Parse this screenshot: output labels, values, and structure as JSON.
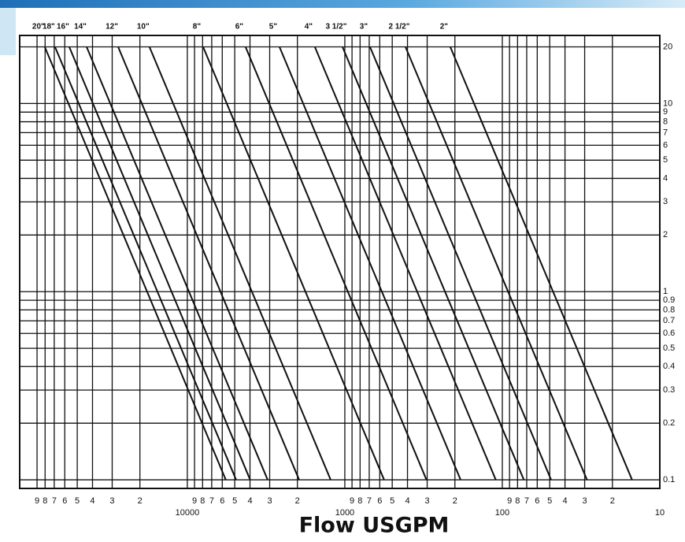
{
  "chart_data": {
    "type": "line",
    "title": "Flow USGPM",
    "log_x": true,
    "log_y": true,
    "grid": true,
    "color": "#111111",
    "xlim": [
      116000,
      10
    ],
    "ylim": [
      0.09,
      23
    ],
    "xticks": [
      {
        "value": 90000,
        "label": "9"
      },
      {
        "value": 80000,
        "label": "8"
      },
      {
        "value": 70000,
        "label": "7"
      },
      {
        "value": 60000,
        "label": "6"
      },
      {
        "value": 50000,
        "label": "5"
      },
      {
        "value": 40000,
        "label": "4"
      },
      {
        "value": 30000,
        "label": "3"
      },
      {
        "value": 20000,
        "label": "2"
      },
      10000,
      {
        "value": 9000,
        "label": "9"
      },
      {
        "value": 8000,
        "label": "8"
      },
      {
        "value": 7000,
        "label": "7"
      },
      {
        "value": 6000,
        "label": "6"
      },
      {
        "value": 5000,
        "label": "5"
      },
      {
        "value": 4000,
        "label": "4"
      },
      {
        "value": 3000,
        "label": "3"
      },
      {
        "value": 2000,
        "label": "2"
      },
      1000,
      {
        "value": 900,
        "label": "9"
      },
      {
        "value": 800,
        "label": "8"
      },
      {
        "value": 700,
        "label": "7"
      },
      {
        "value": 600,
        "label": "6"
      },
      {
        "value": 500,
        "label": "5"
      },
      {
        "value": 400,
        "label": "4"
      },
      {
        "value": 300,
        "label": "3"
      },
      {
        "value": 200,
        "label": "2"
      },
      100,
      {
        "value": 90,
        "label": "9"
      },
      {
        "value": 80,
        "label": "8"
      },
      {
        "value": 70,
        "label": "7"
      },
      {
        "value": 60,
        "label": "6"
      },
      {
        "value": 50,
        "label": "5"
      },
      {
        "value": 40,
        "label": "4"
      },
      {
        "value": 30,
        "label": "3"
      },
      {
        "value": 20,
        "label": "2"
      },
      10
    ],
    "yticks": [
      20,
      10,
      9,
      8,
      7,
      6,
      5,
      4,
      3,
      2,
      1,
      0.9,
      0.8,
      0.7,
      0.6,
      0.5,
      0.4,
      0.3,
      0.2,
      0.1
    ],
    "series": [
      {
        "name": "20\"",
        "x": [
          80400,
          5700
        ],
        "values": [
          20,
          0.1
        ]
      },
      {
        "name": "18\"",
        "x": [
          69200,
          4900
        ],
        "values": [
          20,
          0.1
        ]
      },
      {
        "name": "16\"",
        "x": [
          56200,
          3990
        ],
        "values": [
          20,
          0.1
        ]
      },
      {
        "name": "14\"",
        "x": [
          43600,
          3090
        ],
        "values": [
          20,
          0.1
        ]
      },
      {
        "name": "12\"",
        "x": [
          27500,
          1950
        ],
        "values": [
          20,
          0.1
        ]
      },
      {
        "name": "10\"",
        "x": [
          17400,
          1230
        ],
        "values": [
          20,
          0.1
        ]
      },
      {
        "name": "8\"",
        "x": [
          7940,
          563
        ],
        "values": [
          20,
          0.1
        ]
      },
      {
        "name": "6\"",
        "x": [
          4270,
          303
        ],
        "values": [
          20,
          0.1
        ]
      },
      {
        "name": "5\"",
        "x": [
          2600,
          184
        ],
        "values": [
          20,
          0.1
        ]
      },
      {
        "name": "4\"",
        "x": [
          1550,
          110
        ],
        "values": [
          20,
          0.1
        ]
      },
      {
        "name": "3 1/2\"",
        "x": [
          1035,
          73
        ],
        "values": [
          20,
          0.1
        ]
      },
      {
        "name": "3\"",
        "x": [
          692,
          49
        ],
        "values": [
          20,
          0.1
        ]
      },
      {
        "name": "2 1/2\"",
        "x": [
          412,
          29
        ],
        "values": [
          20,
          0.1
        ]
      },
      {
        "name": "2\"",
        "x": [
          214,
          15
        ],
        "values": [
          20,
          0.1
        ]
      }
    ]
  }
}
